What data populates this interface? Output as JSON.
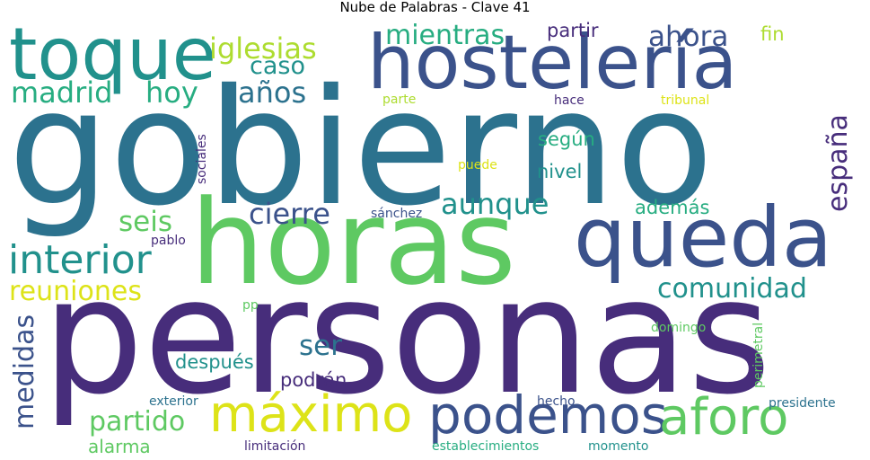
{
  "title": "Nube de Palabras - Clave 41",
  "palette": {
    "dark_purple": "#472d7b",
    "indigo": "#3b528b",
    "blue": "#2c728e",
    "teal": "#21918c",
    "green": "#27ad81",
    "mid_green": "#5ec962",
    "lime": "#addc30",
    "yellow": "#dde318"
  },
  "words": [
    "gobierno",
    "personas",
    "horas",
    "hostelería",
    "queda",
    "toque",
    "podemos",
    "máximo",
    "aforo",
    "interior",
    "iglesias",
    "mientras",
    "ahora",
    "partir",
    "fin",
    "caso",
    "madrid",
    "hoy",
    "años",
    "españa",
    "cierre",
    "aunque",
    "seis",
    "además",
    "según",
    "nivel",
    "reuniones",
    "comunidad",
    "medidas",
    "ser",
    "después",
    "podrán",
    "partido",
    "alarma",
    "parte",
    "hace",
    "tribunal",
    "sociales",
    "puede",
    "sánchez",
    "pablo",
    "pp",
    "domingo",
    "perimetral",
    "exterior",
    "hecho",
    "presidente",
    "limitación",
    "establecimientos",
    "momento"
  ]
}
